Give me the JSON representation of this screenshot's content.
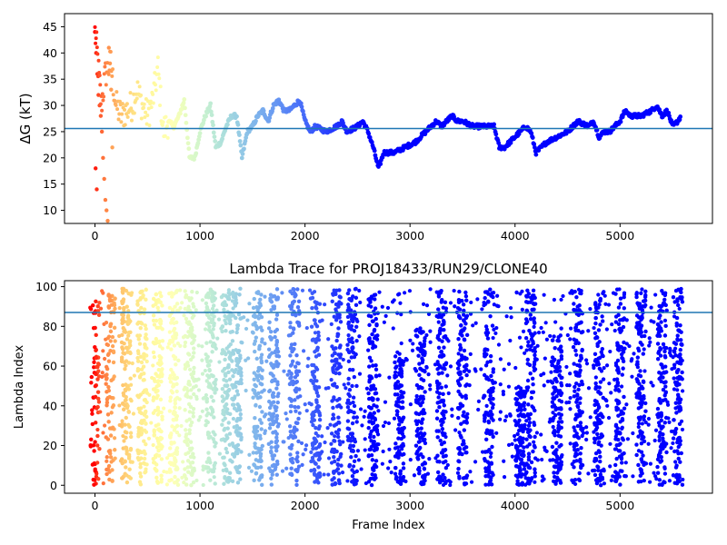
{
  "chart_data": [
    {
      "type": "scatter",
      "title": "",
      "xlabel": "",
      "ylabel": "ΔG (kT)",
      "xlim": [
        -290,
        5880
      ],
      "ylim": [
        7.5,
        47.5
      ],
      "xticks": [
        0,
        1000,
        2000,
        3000,
        4000,
        5000
      ],
      "yticks": [
        10,
        15,
        20,
        25,
        30,
        35,
        40,
        45
      ],
      "grid": false,
      "legend": "none",
      "reference_line_y": 25.6,
      "reference_line_color": "#1f77b4",
      "color_scale": "rainbow (red at frame 0 to violet at late frames)",
      "trace_points": [
        [
          0,
          44
        ],
        [
          20,
          40
        ],
        [
          40,
          35
        ],
        [
          60,
          30
        ],
        [
          100,
          36
        ],
        [
          150,
          38
        ],
        [
          200,
          30
        ],
        [
          250,
          28
        ],
        [
          300,
          29
        ],
        [
          350,
          30
        ],
        [
          400,
          33
        ],
        [
          450,
          30
        ],
        [
          500,
          28
        ],
        [
          550,
          31
        ],
        [
          600,
          37
        ],
        [
          650,
          25
        ],
        [
          700,
          27
        ],
        [
          750,
          26
        ],
        [
          800,
          28
        ],
        [
          850,
          31
        ],
        [
          900,
          20
        ],
        [
          950,
          20
        ],
        [
          1000,
          25
        ],
        [
          1050,
          28
        ],
        [
          1100,
          30
        ],
        [
          1150,
          22
        ],
        [
          1200,
          23
        ],
        [
          1250,
          26
        ],
        [
          1300,
          28
        ],
        [
          1350,
          28
        ],
        [
          1400,
          20
        ],
        [
          1450,
          25
        ],
        [
          1500,
          26
        ],
        [
          1550,
          28
        ],
        [
          1600,
          29
        ],
        [
          1650,
          27
        ],
        [
          1700,
          30
        ],
        [
          1750,
          31
        ],
        [
          1800,
          29
        ],
        [
          1850,
          29
        ],
        [
          1900,
          30
        ],
        [
          1950,
          31
        ],
        [
          2000,
          27
        ],
        [
          2050,
          25
        ],
        [
          2100,
          26
        ],
        [
          2200,
          25
        ],
        [
          2300,
          26
        ],
        [
          2350,
          27
        ],
        [
          2400,
          25
        ],
        [
          2500,
          26
        ],
        [
          2550,
          27
        ],
        [
          2600,
          25
        ],
        [
          2650,
          22
        ],
        [
          2700,
          18
        ],
        [
          2750,
          21
        ],
        [
          2850,
          21
        ],
        [
          2950,
          22
        ],
        [
          3050,
          23
        ],
        [
          3100,
          24
        ],
        [
          3150,
          25
        ],
        [
          3200,
          26
        ],
        [
          3250,
          27
        ],
        [
          3300,
          26
        ],
        [
          3350,
          27
        ],
        [
          3400,
          28
        ],
        [
          3450,
          27
        ],
        [
          3500,
          27
        ],
        [
          3600,
          26
        ],
        [
          3700,
          26
        ],
        [
          3800,
          26
        ],
        [
          3850,
          22
        ],
        [
          3900,
          22
        ],
        [
          4000,
          24
        ],
        [
          4050,
          25
        ],
        [
          4100,
          26
        ],
        [
          4150,
          25
        ],
        [
          4200,
          21
        ],
        [
          4250,
          22
        ],
        [
          4300,
          23
        ],
        [
          4400,
          24
        ],
        [
          4500,
          25
        ],
        [
          4600,
          27
        ],
        [
          4700,
          26
        ],
        [
          4750,
          27
        ],
        [
          4800,
          24
        ],
        [
          4850,
          25
        ],
        [
          4900,
          25
        ],
        [
          5000,
          27
        ],
        [
          5050,
          29
        ],
        [
          5100,
          28
        ],
        [
          5200,
          28
        ],
        [
          5300,
          29
        ],
        [
          5350,
          30
        ],
        [
          5400,
          28
        ],
        [
          5450,
          29
        ],
        [
          5500,
          26
        ],
        [
          5550,
          27
        ],
        [
          5580,
          28
        ]
      ],
      "early_scatter_values": [
        44,
        40,
        36,
        32,
        30,
        28,
        25,
        20,
        16,
        12,
        10,
        8,
        41,
        38,
        33,
        22,
        18,
        14
      ]
    },
    {
      "type": "scatter",
      "title": "Lambda Trace for PROJ18433/RUN29/CLONE40",
      "xlabel": "Frame Index",
      "ylabel": "Lambda Index",
      "xlim": [
        -290,
        5880
      ],
      "ylim": [
        -4,
        103
      ],
      "xticks": [
        0,
        1000,
        2000,
        3000,
        4000,
        5000
      ],
      "yticks": [
        0,
        20,
        40,
        60,
        80,
        100
      ],
      "grid": false,
      "legend": "none",
      "reference_line_y": 87,
      "reference_line_color": "#1f77b4",
      "color_scale": "rainbow (red at frame 0 to violet at late frames)",
      "column_bands": [
        {
          "x": 0,
          "min": 0,
          "max": 96
        },
        {
          "x": 150,
          "min": 0,
          "max": 99
        },
        {
          "x": 300,
          "min": 0,
          "max": 99
        },
        {
          "x": 450,
          "min": 0,
          "max": 99
        },
        {
          "x": 600,
          "min": 0,
          "max": 99
        },
        {
          "x": 750,
          "min": 0,
          "max": 99
        },
        {
          "x": 900,
          "min": 0,
          "max": 99
        },
        {
          "x": 1100,
          "min": 0,
          "max": 99
        },
        {
          "x": 1250,
          "min": 0,
          "max": 99
        },
        {
          "x": 1350,
          "min": 0,
          "max": 99
        },
        {
          "x": 1550,
          "min": 0,
          "max": 99
        },
        {
          "x": 1700,
          "min": 0,
          "max": 99
        },
        {
          "x": 1900,
          "min": 0,
          "max": 99
        },
        {
          "x": 2100,
          "min": 0,
          "max": 99
        },
        {
          "x": 2300,
          "min": 0,
          "max": 99
        },
        {
          "x": 2450,
          "min": 0,
          "max": 99
        },
        {
          "x": 2650,
          "min": 0,
          "max": 99
        },
        {
          "x": 2900,
          "min": 0,
          "max": 65
        },
        {
          "x": 3100,
          "min": 0,
          "max": 80
        },
        {
          "x": 3300,
          "min": 0,
          "max": 99
        },
        {
          "x": 3500,
          "min": 0,
          "max": 99
        },
        {
          "x": 3750,
          "min": 0,
          "max": 99
        },
        {
          "x": 4050,
          "min": 0,
          "max": 50
        },
        {
          "x": 4150,
          "min": 0,
          "max": 99
        },
        {
          "x": 4400,
          "min": 0,
          "max": 80
        },
        {
          "x": 4600,
          "min": 0,
          "max": 99
        },
        {
          "x": 4800,
          "min": 0,
          "max": 99
        },
        {
          "x": 5000,
          "min": 0,
          "max": 99
        },
        {
          "x": 5200,
          "min": 0,
          "max": 99
        },
        {
          "x": 5400,
          "min": 0,
          "max": 99
        },
        {
          "x": 5550,
          "min": 0,
          "max": 99
        }
      ]
    }
  ]
}
